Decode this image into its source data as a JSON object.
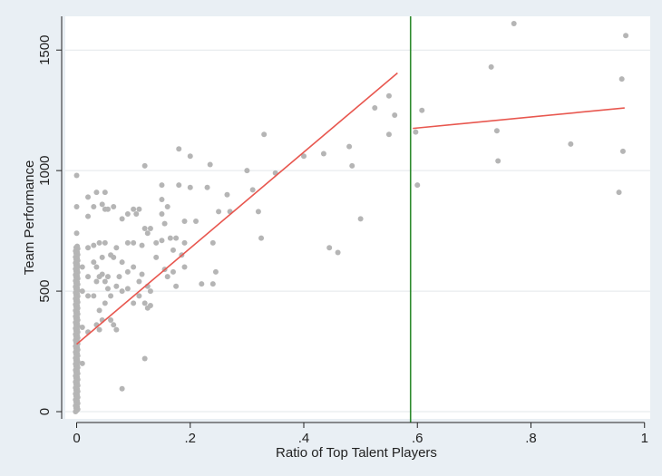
{
  "chart_data": {
    "type": "scatter",
    "xlabel": "Ratio of Top Talent Players",
    "ylabel": "Team Performance",
    "xlim": [
      -0.02,
      1.01
    ],
    "ylim": [
      -30,
      1640
    ],
    "xticks": [
      {
        "value": 0,
        "label": "0"
      },
      {
        "value": 0.2,
        "label": ".2"
      },
      {
        "value": 0.4,
        "label": ".4"
      },
      {
        "value": 0.6,
        "label": ".6"
      },
      {
        "value": 0.8,
        "label": ".8"
      },
      {
        "value": 1,
        "label": "1"
      }
    ],
    "yticks": [
      {
        "value": 0,
        "label": "0"
      },
      {
        "value": 500,
        "label": "500"
      },
      {
        "value": 1000,
        "label": "1000"
      },
      {
        "value": 1500,
        "label": "1500"
      }
    ],
    "grid": true,
    "colors": {
      "background": "#e9eff4",
      "plot_area": "#ffffff",
      "points": "#b5b5b5",
      "fit_line": "#e8574f",
      "threshold_line": "#2e8b2e"
    },
    "threshold_x": 0.588,
    "fit_lines": [
      {
        "x": [
          0,
          0.565
        ],
        "y": [
          280,
          1405
        ]
      },
      {
        "x": [
          0.592,
          0.965
        ],
        "y": [
          1175,
          1260
        ]
      }
    ],
    "points_at_zero": {
      "x": 0,
      "y_min": 0,
      "y_max": 980,
      "count": 140
    },
    "points": [
      [
        0,
        980
      ],
      [
        0,
        850
      ],
      [
        0,
        740
      ],
      [
        0.01,
        600
      ],
      [
        0.01,
        500
      ],
      [
        0.01,
        350
      ],
      [
        0.01,
        200
      ],
      [
        0.02,
        890
      ],
      [
        0.02,
        810
      ],
      [
        0.02,
        680
      ],
      [
        0.02,
        330
      ],
      [
        0.02,
        480
      ],
      [
        0.02,
        560
      ],
      [
        0.03,
        690
      ],
      [
        0.03,
        620
      ],
      [
        0.03,
        480
      ],
      [
        0.03,
        850
      ],
      [
        0.035,
        910
      ],
      [
        0.035,
        600
      ],
      [
        0.035,
        360
      ],
      [
        0.035,
        540
      ],
      [
        0.04,
        700
      ],
      [
        0.04,
        560
      ],
      [
        0.04,
        340
      ],
      [
        0.04,
        420
      ],
      [
        0.045,
        860
      ],
      [
        0.045,
        640
      ],
      [
        0.045,
        570
      ],
      [
        0.045,
        380
      ],
      [
        0.05,
        910
      ],
      [
        0.05,
        840
      ],
      [
        0.05,
        700
      ],
      [
        0.05,
        540
      ],
      [
        0.05,
        450
      ],
      [
        0.055,
        840
      ],
      [
        0.055,
        560
      ],
      [
        0.055,
        510
      ],
      [
        0.06,
        650
      ],
      [
        0.06,
        480
      ],
      [
        0.06,
        380
      ],
      [
        0.065,
        850
      ],
      [
        0.065,
        640
      ],
      [
        0.065,
        360
      ],
      [
        0.07,
        680
      ],
      [
        0.07,
        520
      ],
      [
        0.07,
        340
      ],
      [
        0.075,
        560
      ],
      [
        0.08,
        800
      ],
      [
        0.08,
        620
      ],
      [
        0.08,
        500
      ],
      [
        0.08,
        95
      ],
      [
        0.09,
        820
      ],
      [
        0.09,
        700
      ],
      [
        0.09,
        580
      ],
      [
        0.09,
        510
      ],
      [
        0.1,
        840
      ],
      [
        0.1,
        700
      ],
      [
        0.1,
        600
      ],
      [
        0.1,
        450
      ],
      [
        0.105,
        820
      ],
      [
        0.11,
        840
      ],
      [
        0.11,
        540
      ],
      [
        0.11,
        480
      ],
      [
        0.115,
        690
      ],
      [
        0.115,
        570
      ],
      [
        0.12,
        1020
      ],
      [
        0.12,
        760
      ],
      [
        0.12,
        450
      ],
      [
        0.12,
        220
      ],
      [
        0.125,
        740
      ],
      [
        0.125,
        520
      ],
      [
        0.125,
        430
      ],
      [
        0.13,
        760
      ],
      [
        0.13,
        500
      ],
      [
        0.13,
        440
      ],
      [
        0.14,
        700
      ],
      [
        0.14,
        640
      ],
      [
        0.15,
        940
      ],
      [
        0.15,
        880
      ],
      [
        0.15,
        820
      ],
      [
        0.15,
        710
      ],
      [
        0.155,
        780
      ],
      [
        0.155,
        590
      ],
      [
        0.16,
        850
      ],
      [
        0.16,
        560
      ],
      [
        0.165,
        720
      ],
      [
        0.17,
        670
      ],
      [
        0.17,
        580
      ],
      [
        0.175,
        720
      ],
      [
        0.175,
        520
      ],
      [
        0.18,
        1090
      ],
      [
        0.18,
        940
      ],
      [
        0.185,
        650
      ],
      [
        0.19,
        790
      ],
      [
        0.19,
        700
      ],
      [
        0.19,
        600
      ],
      [
        0.2,
        1060
      ],
      [
        0.2,
        930
      ],
      [
        0.21,
        790
      ],
      [
        0.22,
        530
      ],
      [
        0.23,
        930
      ],
      [
        0.235,
        1025
      ],
      [
        0.24,
        700
      ],
      [
        0.24,
        530
      ],
      [
        0.245,
        580
      ],
      [
        0.25,
        830
      ],
      [
        0.265,
        900
      ],
      [
        0.27,
        830
      ],
      [
        0.3,
        1000
      ],
      [
        0.31,
        920
      ],
      [
        0.32,
        830
      ],
      [
        0.325,
        720
      ],
      [
        0.33,
        1150
      ],
      [
        0.35,
        990
      ],
      [
        0.4,
        1060
      ],
      [
        0.435,
        1070
      ],
      [
        0.445,
        680
      ],
      [
        0.46,
        660
      ],
      [
        0.48,
        1100
      ],
      [
        0.485,
        1020
      ],
      [
        0.5,
        800
      ],
      [
        0.525,
        1260
      ],
      [
        0.55,
        1150
      ],
      [
        0.55,
        1310
      ],
      [
        0.56,
        1230
      ],
      [
        0.597,
        1160
      ],
      [
        0.6,
        940
      ],
      [
        0.608,
        1250
      ],
      [
        0.73,
        1430
      ],
      [
        0.74,
        1165
      ],
      [
        0.742,
        1040
      ],
      [
        0.77,
        1610
      ],
      [
        0.87,
        1110
      ],
      [
        0.955,
        910
      ],
      [
        0.96,
        1380
      ],
      [
        0.962,
        1080
      ],
      [
        0.967,
        1560
      ]
    ]
  }
}
